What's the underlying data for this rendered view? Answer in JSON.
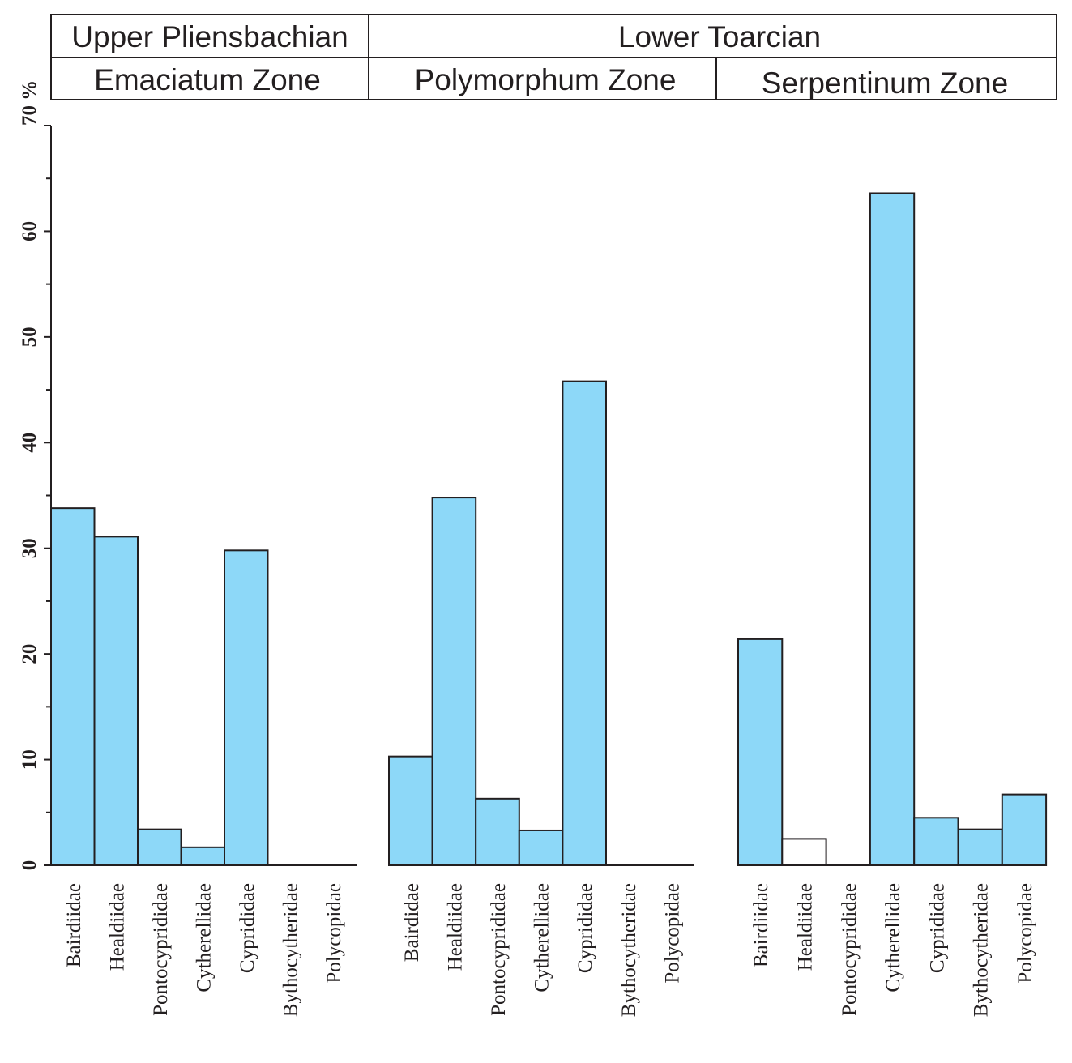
{
  "header": {
    "stages": [
      {
        "label": "Upper Pliensbachian"
      },
      {
        "label": "Lower Toarcian"
      }
    ],
    "zones": [
      {
        "label": "Emaciatum Zone"
      },
      {
        "label": "Polymorphum Zone"
      },
      {
        "label": "Serpentinum Zone"
      }
    ]
  },
  "colors": {
    "bar_fill": "#8dd8f8",
    "outline": "#231f20",
    "empty_fill": "#ffffff"
  },
  "chart_data": {
    "type": "bar",
    "ylabel": "",
    "y_max_label": "70 %",
    "ylim": [
      0,
      70
    ],
    "y_ticks": [
      0,
      10,
      20,
      30,
      40,
      50,
      60
    ],
    "y_minor_step": 5,
    "grid": false,
    "legend": "none",
    "panels": [
      {
        "zone": "Emaciatum Zone",
        "categories": [
          "Bairdiidae",
          "Healdiidae",
          "Pontocyprididae",
          "Cytherellidae",
          "Cyprididae",
          "Bythocytheridae",
          "Polycopidae"
        ],
        "values": [
          33.8,
          31.1,
          3.4,
          1.7,
          29.8,
          0,
          0
        ],
        "filled": [
          true,
          true,
          true,
          true,
          true,
          true,
          true
        ]
      },
      {
        "zone": "Polymorphum Zone",
        "categories": [
          "Bairdidae",
          "Healdiidae",
          "Pontocyprididae",
          "Cytherellidae",
          "Cyprididae",
          "Bythocytheridae",
          "Polycopidae"
        ],
        "values": [
          10.3,
          34.8,
          6.3,
          3.3,
          45.8,
          0,
          0
        ],
        "filled": [
          true,
          true,
          true,
          true,
          true,
          true,
          true
        ]
      },
      {
        "zone": "Serpentinum Zone",
        "categories": [
          "Bairdiidae",
          "Healdiidae",
          "Pontocyprididae",
          "Cytherellidae",
          "Cyprididae",
          "Bythocytheridae",
          "Polycopidae"
        ],
        "values": [
          21.4,
          2.5,
          0,
          63.6,
          4.5,
          3.4,
          6.7
        ],
        "filled": [
          true,
          false,
          true,
          true,
          true,
          true,
          true
        ]
      }
    ]
  }
}
